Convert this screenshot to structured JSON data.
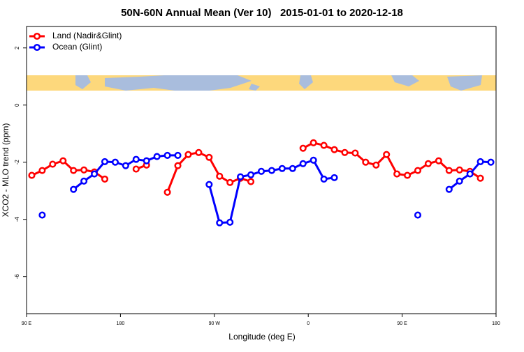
{
  "chart_data": {
    "type": "line",
    "title": "50N-60N Annual Mean (Ver 10)   2015-01-01 to 2020-12-18",
    "xlabel": "Longitude (deg E)",
    "ylabel": "XCO2 - MLO trend (ppm)",
    "legend": "top-left",
    "x": [
      -265,
      -255,
      -245,
      -235,
      -225,
      -215,
      -205,
      -195,
      -185,
      -175,
      -165,
      -155,
      -145,
      -135,
      -125,
      -115,
      -105,
      -95,
      -85,
      -75,
      -65,
      -55,
      -45,
      -35,
      -25,
      -15,
      -5,
      5,
      15,
      25,
      35,
      45,
      55,
      65,
      75,
      85,
      95,
      105,
      115,
      125,
      135,
      145,
      155,
      165,
      175
    ],
    "series": [
      {
        "name": "Land (Nadir&Glint)",
        "color": "#ff0000",
        "values": [
          -2.46,
          -2.29,
          -2.07,
          -1.95,
          -2.29,
          -2.27,
          -2.34,
          -2.59,
          null,
          null,
          -2.24,
          -2.1,
          null,
          -3.05,
          -2.12,
          -1.73,
          -1.66,
          -1.83,
          -2.49,
          -2.71,
          -2.56,
          -2.68,
          null,
          null,
          null,
          null,
          -1.51,
          -1.32,
          -1.41,
          -1.56,
          -1.66,
          -1.68,
          -2.0,
          -2.1,
          -1.73,
          -2.41,
          -2.46,
          -2.29,
          -2.05,
          -1.95,
          -2.29,
          -2.27,
          -2.32,
          -2.56,
          null
        ]
      },
      {
        "name": "Ocean (Glint)",
        "color": "#0000ff",
        "values": [
          null,
          -3.85,
          null,
          null,
          -2.95,
          -2.66,
          -2.41,
          -1.98,
          -2.0,
          -2.12,
          -1.9,
          -1.95,
          -1.8,
          -1.76,
          -1.76,
          null,
          null,
          -2.78,
          -4.12,
          -4.1,
          -2.51,
          -2.44,
          -2.32,
          -2.29,
          -2.22,
          -2.22,
          -2.05,
          -1.93,
          -2.59,
          -2.54,
          null,
          null,
          null,
          null,
          null,
          null,
          null,
          -3.85,
          null,
          null,
          -2.95,
          -2.66,
          -2.41,
          -1.98,
          -2.0
        ]
      }
    ],
    "xlim": [
      -270,
      180
    ],
    "xticks": [
      {
        "value": -270,
        "label": "90 E"
      },
      {
        "value": -180,
        "label": "180"
      },
      {
        "value": -90,
        "label": "90 W"
      },
      0,
      {
        "value": 90,
        "label": "90 E"
      },
      {
        "value": 180,
        "label": "180"
      }
    ],
    "ylim": [
      -7.3,
      2.75
    ],
    "yticks": [
      -6,
      -4,
      -2,
      0,
      2
    ]
  }
}
